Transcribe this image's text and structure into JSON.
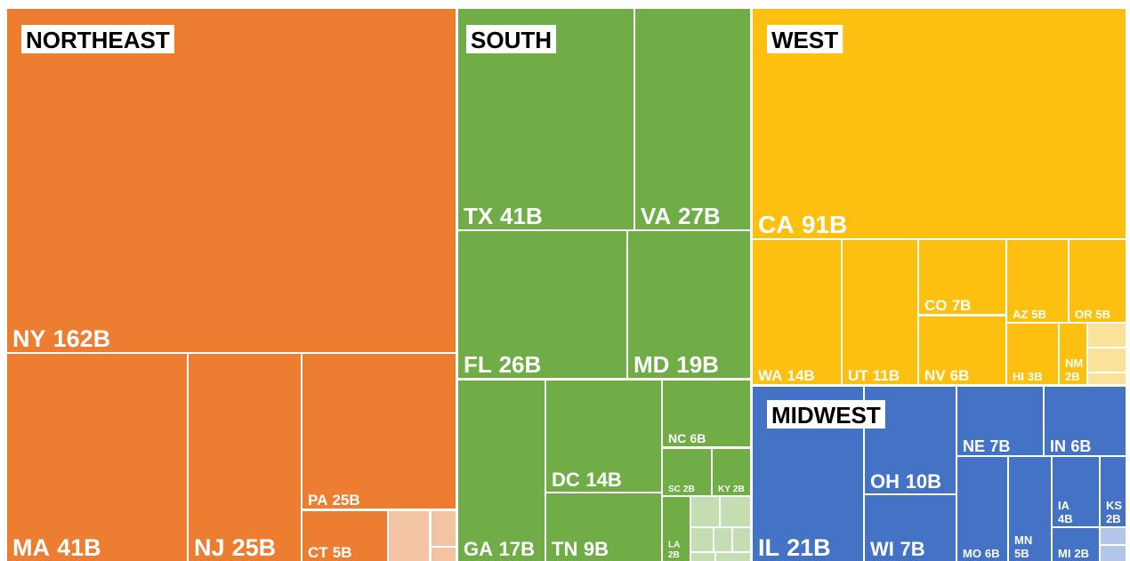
{
  "chart_data": {
    "type": "treemap",
    "groups": [
      {
        "name": "NORTHEAST",
        "color": "#ED7D31",
        "minor_color": "#F2C4A4",
        "categories": [
          "NY",
          "MA",
          "NJ",
          "PA",
          "CT",
          null,
          null,
          null
        ],
        "values": [
          162,
          41,
          25,
          25,
          5,
          4,
          2,
          1
        ],
        "value_labels": [
          "162B",
          "41B",
          "25B",
          "25B",
          "5B",
          null,
          null,
          null
        ]
      },
      {
        "name": "SOUTH",
        "color": "#70AD47",
        "minor_color": "#C5DDB3",
        "categories": [
          "TX",
          "VA",
          "FL",
          "MD",
          "GA",
          "DC",
          "TN",
          "NC",
          "SC",
          "KY",
          "LA",
          null,
          null,
          null,
          null,
          null,
          null,
          null
        ],
        "values": [
          41,
          27,
          26,
          19,
          17,
          14,
          9,
          6,
          2,
          2,
          2,
          1,
          1,
          1,
          1,
          1,
          1,
          1
        ],
        "value_labels": [
          "41B",
          "27B",
          "26B",
          "19B",
          "17B",
          "14B",
          "9B",
          "6B",
          "2B",
          "2B",
          "2B",
          null,
          null,
          null,
          null,
          null,
          null,
          null
        ]
      },
      {
        "name": "WEST",
        "color": "#FDC010",
        "minor_color": "#FBE29A",
        "categories": [
          "CA",
          "WA",
          "UT",
          "CO",
          "NV",
          "AZ",
          "OR",
          "HI",
          "NM",
          null,
          null,
          null
        ],
        "values": [
          91,
          14,
          11,
          7,
          6,
          5,
          5,
          3,
          2,
          1,
          1,
          1
        ],
        "value_labels": [
          "91B",
          "14B",
          "11B",
          "7B",
          "6B",
          "5B",
          "5B",
          "3B",
          "2B",
          null,
          null,
          null
        ]
      },
      {
        "name": "MIDWEST",
        "color": "#4472C4",
        "minor_color": "#B4C6E7",
        "categories": [
          "IL",
          "OH",
          "WI",
          "NE",
          "IN",
          "MO",
          "MN",
          "IA",
          "KS",
          "MI",
          null,
          null
        ],
        "values": [
          21,
          10,
          7,
          7,
          6,
          6,
          5,
          4,
          2,
          2,
          1,
          1
        ],
        "value_labels": [
          "21B",
          "10B",
          "7B",
          "7B",
          "6B",
          "6B",
          "5B",
          "4B",
          "2B",
          "2B",
          null,
          null
        ]
      }
    ]
  }
}
